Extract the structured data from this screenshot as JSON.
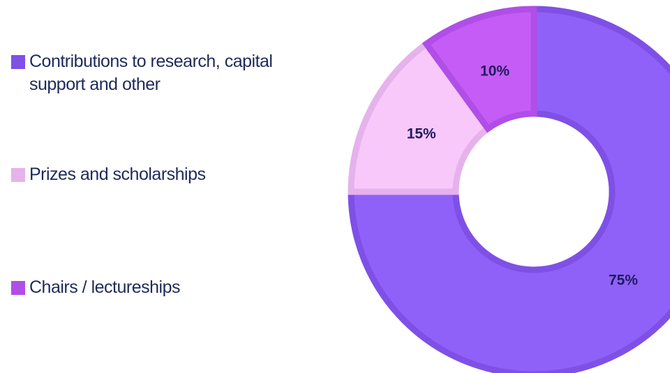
{
  "chart_data": {
    "type": "donut",
    "categories": [
      "Contributions to research, capital support and other",
      "Prizes and scholarships",
      "Chairs / lectureships"
    ],
    "values": [
      75,
      15,
      10
    ],
    "value_labels": [
      "75%",
      "15%",
      "10%"
    ],
    "colors": [
      "#9061f9",
      "#f8c8fa",
      "#c65cf6"
    ],
    "edge_colors": [
      "#7f50e6",
      "#e6b2ec",
      "#b04ee8"
    ],
    "legend": "left"
  }
}
